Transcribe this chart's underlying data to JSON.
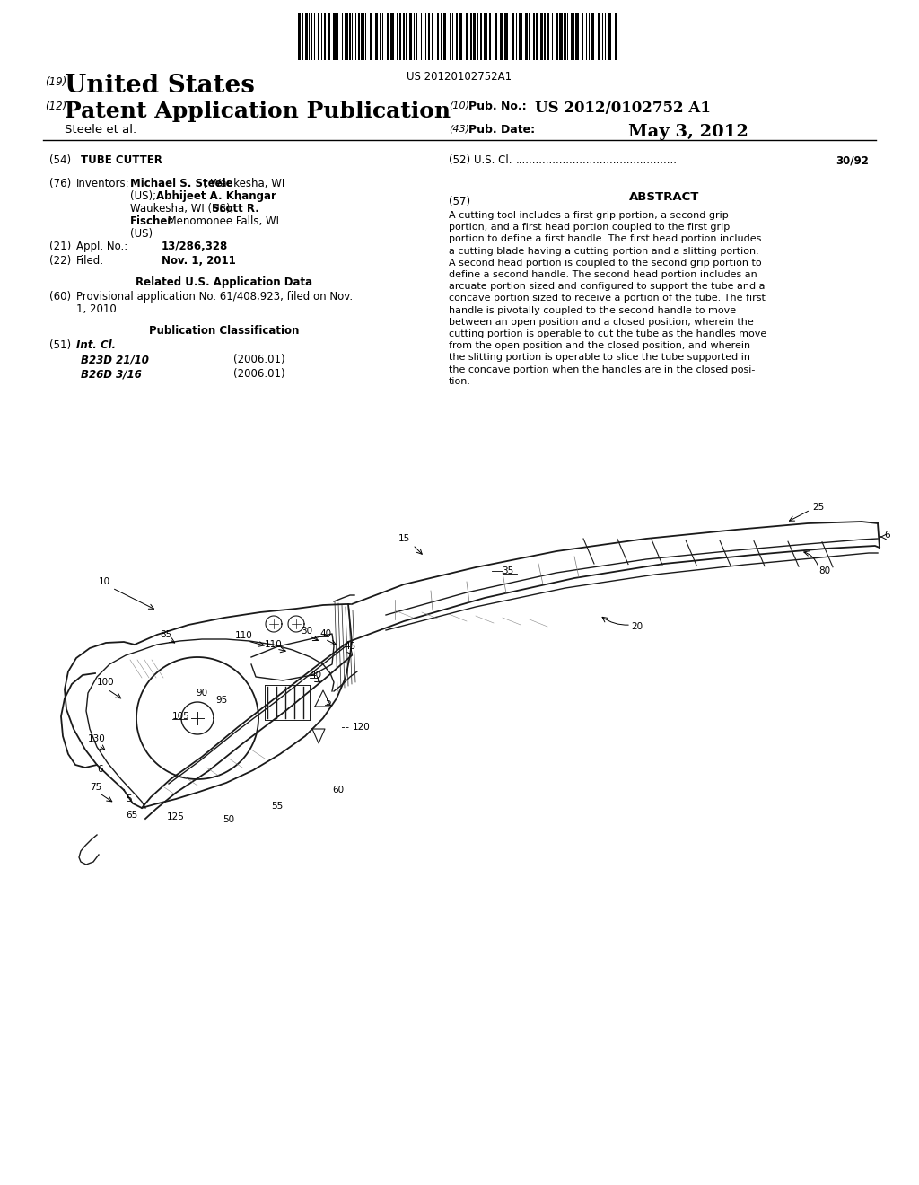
{
  "background_color": "#ffffff",
  "barcode_text": "US 20120102752A1",
  "header": {
    "num19": "(19)",
    "united_states": "United States",
    "num12": "(12)",
    "patent_app_pub": "Patent Application Publication",
    "author": "Steele et al.",
    "num10": "(10)",
    "pub_no_label": "Pub. No.:",
    "pub_no": "US 2012/0102752 A1",
    "num43": "(43)",
    "pub_date_label": "Pub. Date:",
    "pub_date": "May 3, 2012"
  },
  "left_col": {
    "num54": "(54)",
    "title_label": "TUBE CUTTER",
    "num76": "(76)",
    "inventors_label": "Inventors:",
    "num21": "(21)",
    "appl_label": "Appl. No.:",
    "appl_no": "13/286,328",
    "num22": "(22)",
    "filed_label": "Filed:",
    "filed_date": "Nov. 1, 2011",
    "related_header": "Related U.S. Application Data",
    "num60": "(60)",
    "provisional_line1": "Provisional application No. 61/408,923, filed on Nov.",
    "provisional_line2": "1, 2010.",
    "pub_class_header": "Publication Classification",
    "num51": "(51)",
    "int_cl_label": "Int. Cl.",
    "class1": "B23D 21/10",
    "class1_year": "(2006.01)",
    "class2": "B26D 3/16",
    "class2_year": "(2006.01)"
  },
  "right_col": {
    "num52": "(52)",
    "us_cl_label": "U.S. Cl.",
    "us_cl_val": "30/92",
    "num57": "(57)",
    "abstract_header": "ABSTRACT",
    "abstract_lines": [
      "A cutting tool includes a first grip portion, a second grip",
      "portion, and a first head portion coupled to the first grip",
      "portion to define a first handle. The first head portion includes",
      "a cutting blade having a cutting portion and a slitting portion.",
      "A second head portion is coupled to the second grip portion to",
      "define a second handle. The second head portion includes an",
      "arcuate portion sized and configured to support the tube and a",
      "concave portion sized to receive a portion of the tube. The first",
      "handle is pivotally coupled to the second handle to move",
      "between an open position and a closed position, wherein the",
      "cutting portion is operable to cut the tube as the handles move",
      "from the open position and the closed position, and wherein",
      "the slitting portion is operable to slice the tube supported in",
      "the concave portion when the handles are in the closed posi-",
      "tion."
    ]
  }
}
